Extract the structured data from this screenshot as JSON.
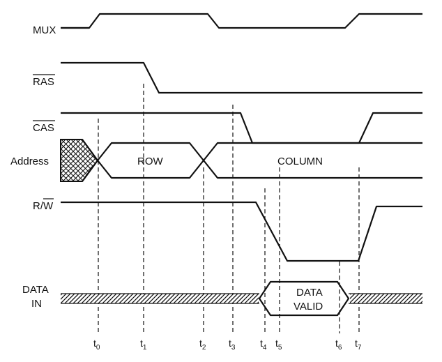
{
  "signals": [
    {
      "id": "mux",
      "label": "MUX"
    },
    {
      "id": "ras",
      "label": "RAS",
      "overbar": true
    },
    {
      "id": "cas",
      "label": "CAS",
      "overbar": true
    },
    {
      "id": "address",
      "label": "Address"
    },
    {
      "id": "rw",
      "label": "R/W",
      "overbar_on_w": true
    },
    {
      "id": "data_in",
      "label_line1": "DATA",
      "label_line2": "IN"
    }
  ],
  "address_regions": {
    "row": "ROW",
    "column": "COLUMN"
  },
  "data_region": {
    "line1": "DATA",
    "line2": "VALID"
  },
  "time_markers": [
    {
      "main": "t",
      "sub": "0"
    },
    {
      "main": "t",
      "sub": "1"
    },
    {
      "main": "t",
      "sub": "2"
    },
    {
      "main": "t",
      "sub": "3"
    },
    {
      "main": "t",
      "sub": "4"
    },
    {
      "main": "t",
      "sub": "5"
    },
    {
      "main": "t",
      "sub": "6"
    },
    {
      "main": "t",
      "sub": "7"
    }
  ],
  "colors": {
    "ink": "#111111",
    "background": "#ffffff"
  }
}
